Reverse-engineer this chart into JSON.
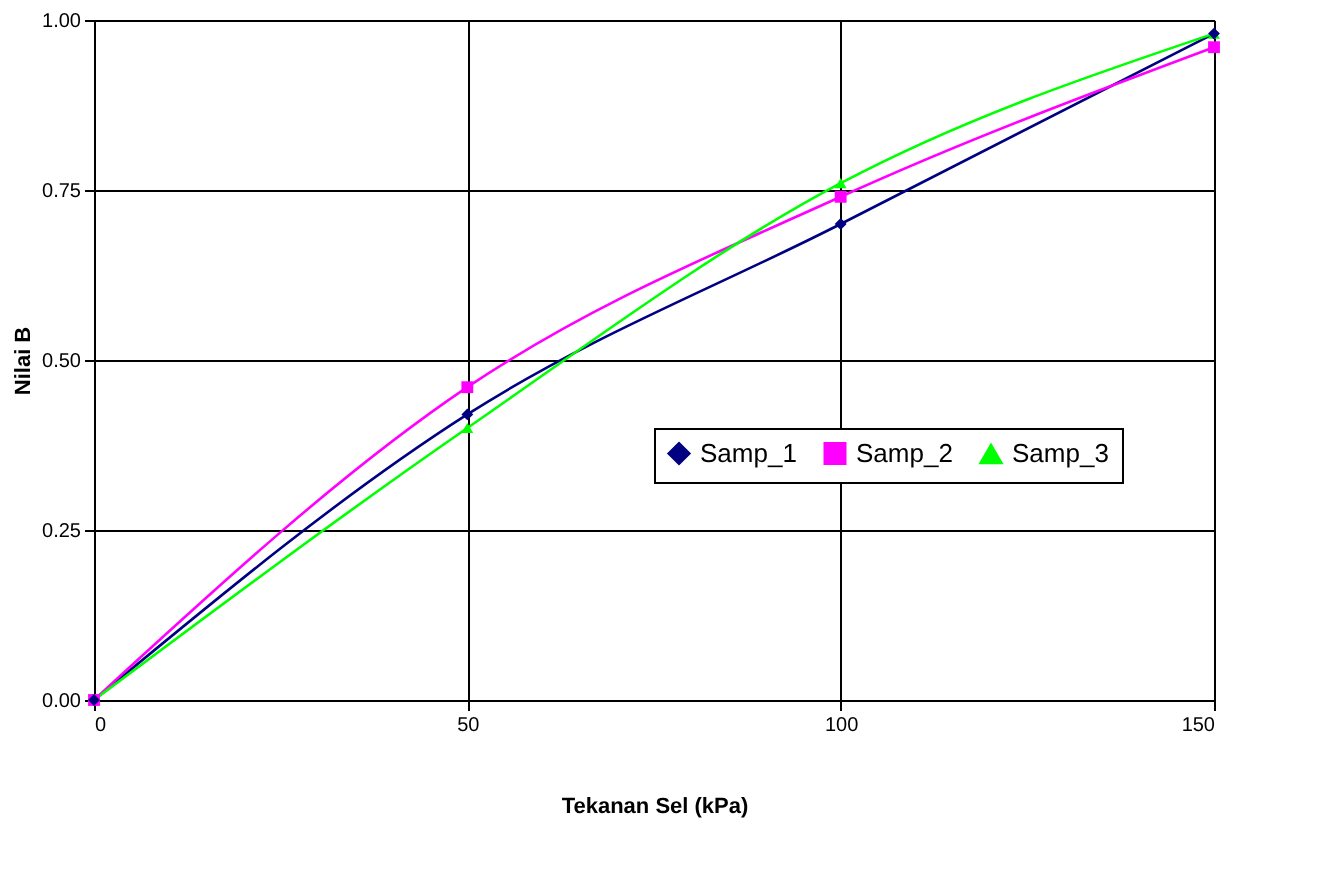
{
  "chart_data": {
    "type": "line",
    "xlabel": "Tekanan Sel (kPa)",
    "ylabel": "Nilai B",
    "x": [
      0,
      50,
      100,
      150
    ],
    "series": [
      {
        "name": "Samp_1",
        "color": "#000080",
        "marker": "diamond",
        "values": [
          0,
          0.42,
          0.7,
          0.98
        ]
      },
      {
        "name": "Samp_2",
        "color": "#ff00ff",
        "marker": "square",
        "values": [
          0,
          0.46,
          0.74,
          0.96
        ]
      },
      {
        "name": "Samp_3",
        "color": "#00ff00",
        "marker": "triangle",
        "values": [
          0,
          0.4,
          0.76,
          0.98
        ]
      }
    ],
    "xlim": [
      0,
      150
    ],
    "xticks": [
      0,
      50,
      100,
      150
    ],
    "ylim": [
      0,
      1
    ],
    "yticks": [
      {
        "value": 0,
        "label": "0.00"
      },
      {
        "value": 0.25,
        "label": "0.25"
      },
      {
        "value": 0.5,
        "label": "0.50"
      },
      {
        "value": 0.75,
        "label": "0.75"
      },
      {
        "value": 1,
        "label": "1.00"
      }
    ],
    "grid": true,
    "legend": "right",
    "line_style": "solid"
  }
}
